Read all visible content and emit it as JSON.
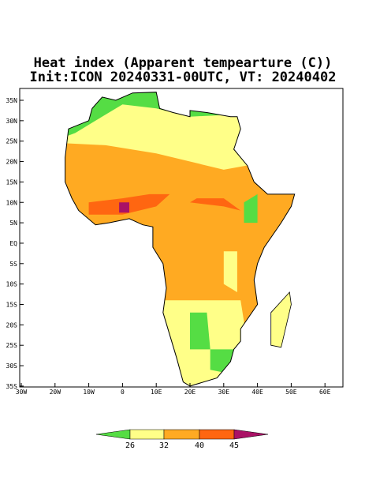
{
  "map": {
    "title": [
      "Heat index (Apparent tempearture (C))",
      "Init:ICON 20240331-00UTC, VT: 20240402"
    ],
    "lat_labels": [
      "35N",
      "30N",
      "25N",
      "20N",
      "15N",
      "10N",
      "5N",
      "EQ",
      "5S",
      "10S",
      "15S",
      "20S",
      "25S",
      "30S",
      "35S"
    ],
    "lon_labels": [
      "30W",
      "20W",
      "10W",
      "0",
      "10E",
      "20E",
      "30E",
      "40E",
      "50E",
      "60E"
    ],
    "colorbar": {
      "labels": [
        26,
        32,
        40,
        45
      ]
    }
  }
}
